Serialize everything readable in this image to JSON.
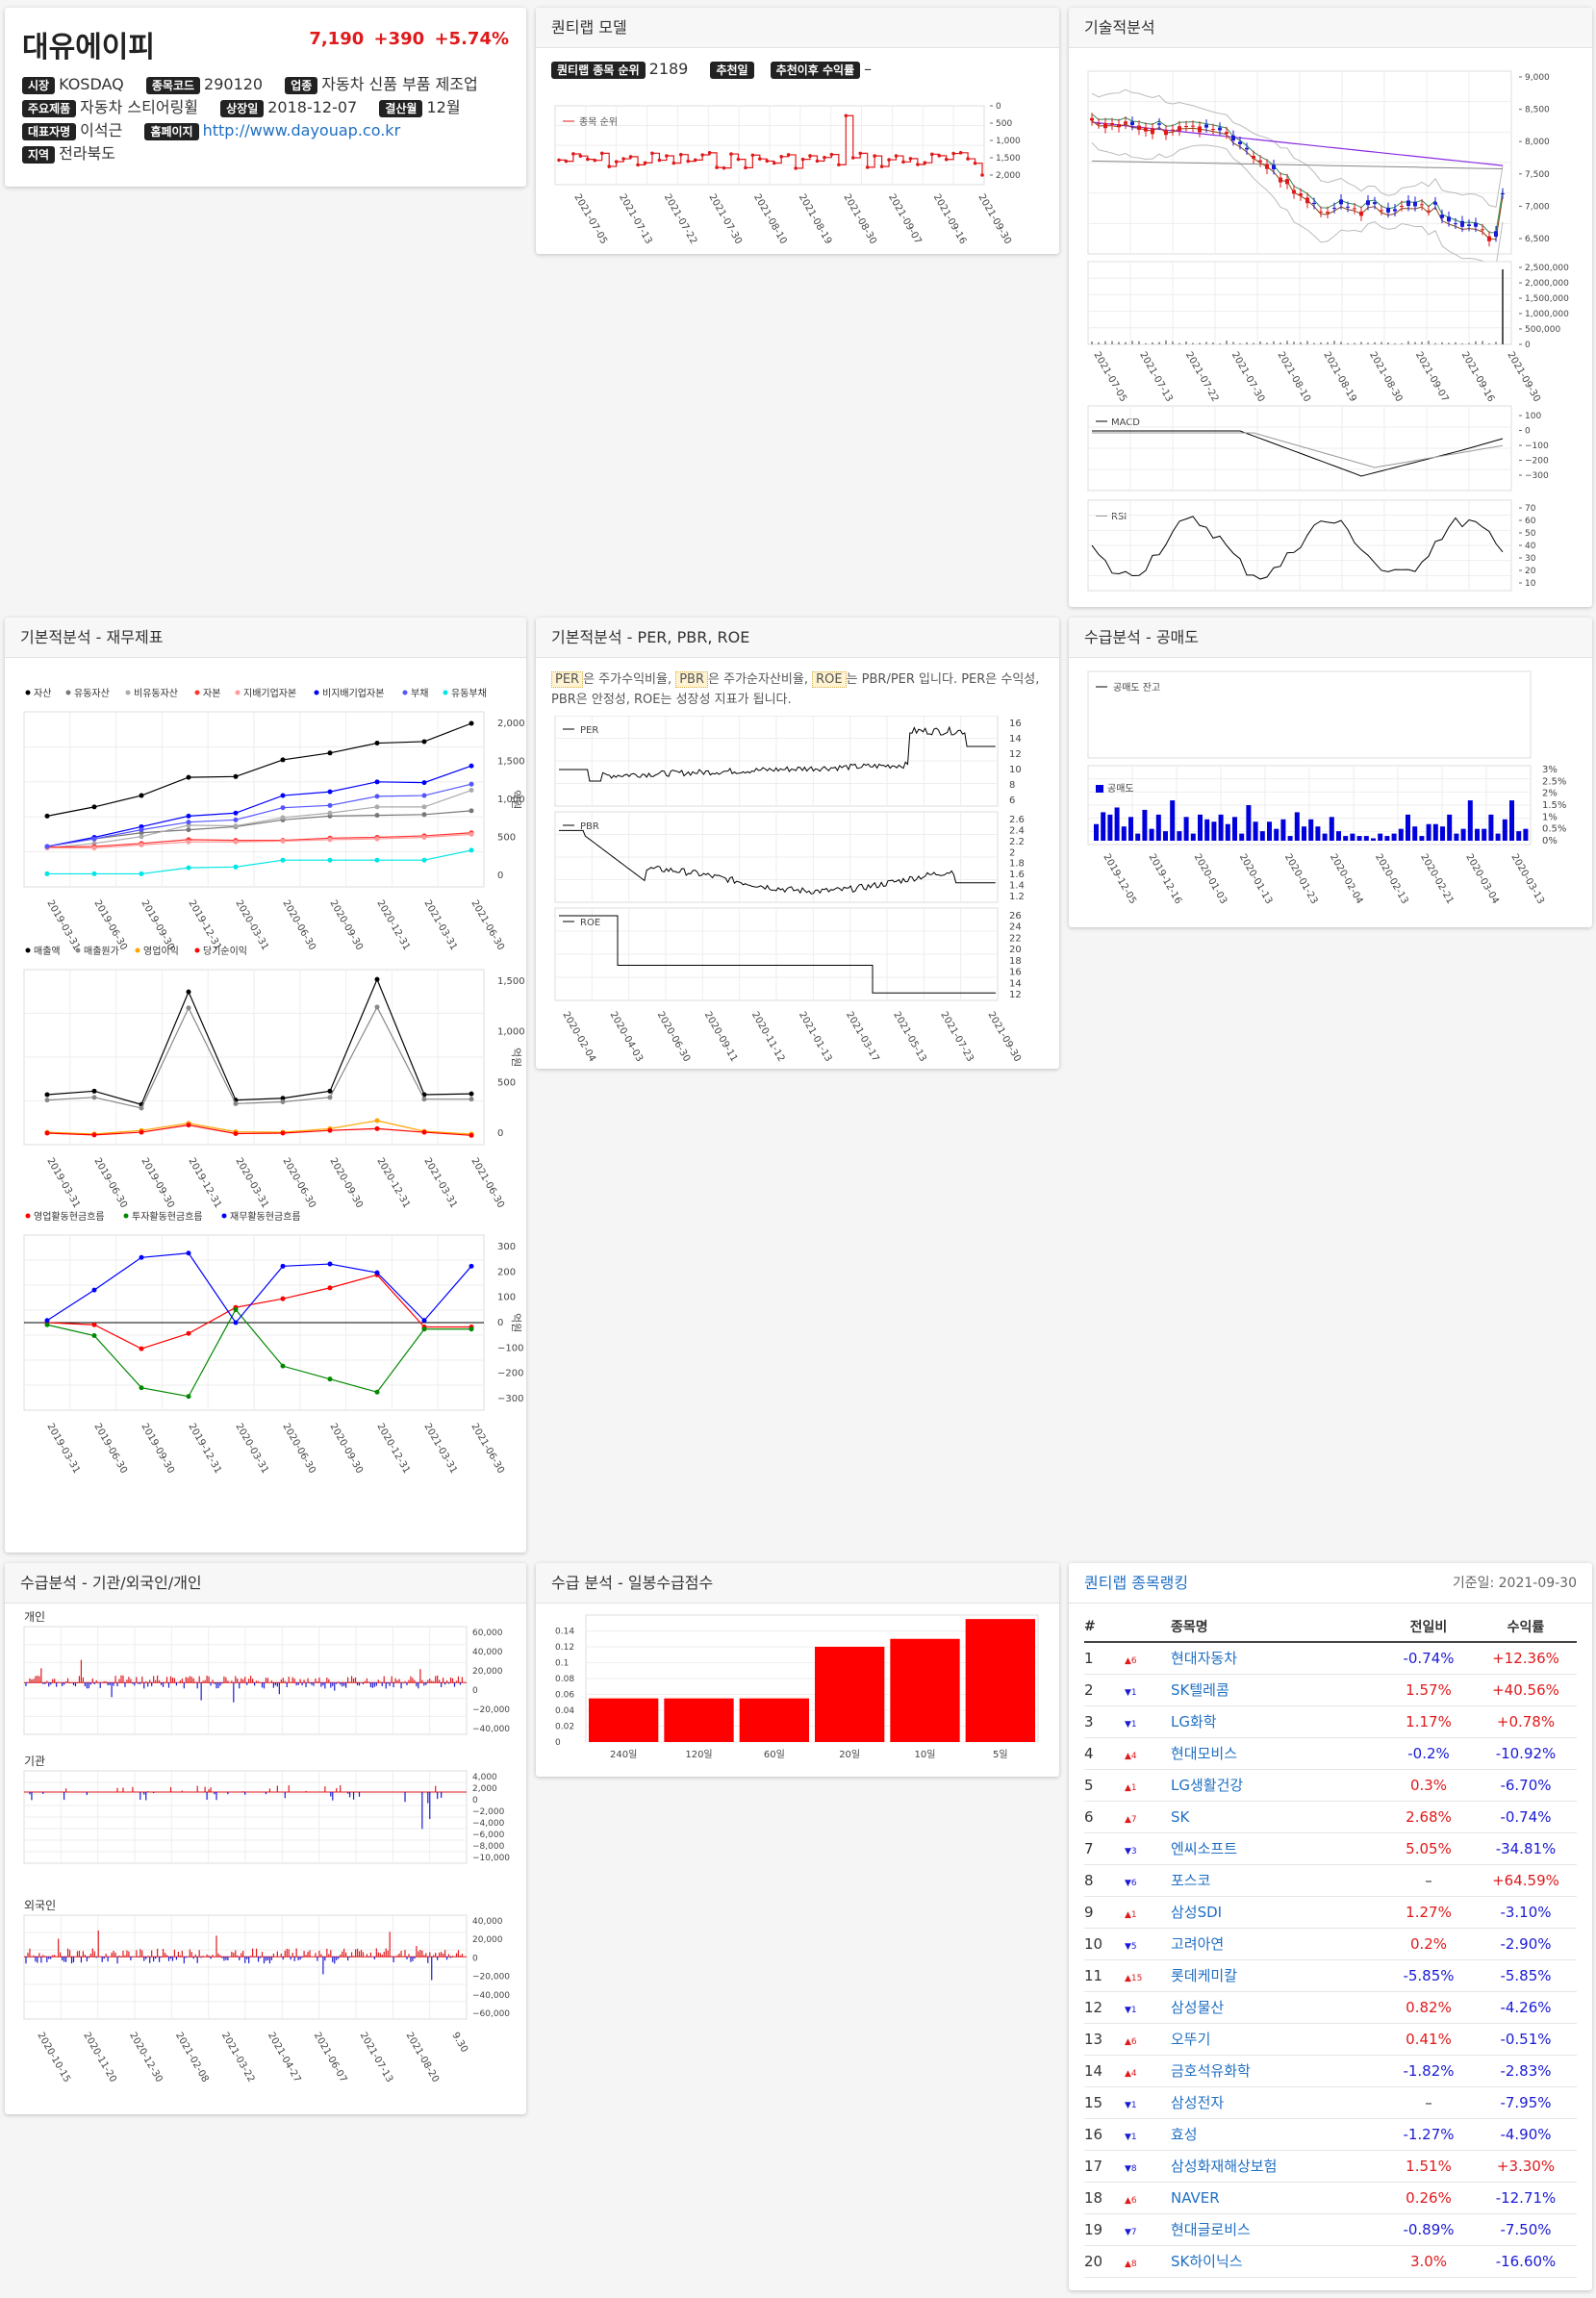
{
  "stock": {
    "name": "대유에이피",
    "price": "7,190",
    "change": "+390",
    "pct": "+5.74%",
    "up_color": "#e0191b",
    "labels": {
      "market": "시장",
      "code": "종목코드",
      "industry": "업종",
      "product": "주요제품",
      "listed": "상장일",
      "fiscal": "결산월",
      "ceo": "대표자명",
      "homepage": "홈페이지",
      "region": "지역"
    },
    "market": "KOSDAQ",
    "code": "290120",
    "industry": "자동차 신품 부품 제조업",
    "product": "자동차 스티어링휠",
    "listed": "2018-12-07",
    "fiscal": "12월",
    "ceo": "이석근",
    "homepage": "http://www.dayouap.co.kr",
    "region": "전라북도"
  },
  "quant": {
    "title": "퀀티랩 모델",
    "rank_label": "퀀티랩 종목 순위",
    "rank": "2189",
    "rec_label": "추천일",
    "ret_label": "추천이후 수익률",
    "ret": "–",
    "legend": "종목 순위",
    "yticks": [
      "0",
      "500",
      "1,000",
      "1,500",
      "2,000"
    ],
    "xticks": [
      "2021-07-05",
      "2021-07-13",
      "2021-07-22",
      "2021-07-30",
      "2021-08-10",
      "2021-08-19",
      "2021-08-30",
      "2021-09-07",
      "2021-09-16",
      "2021-09-30"
    ]
  },
  "tech": {
    "title": "기술적분석",
    "price_ticks": [
      "9,000",
      "8,500",
      "8,000",
      "7,500",
      "7,000",
      "6,500"
    ],
    "vol_ticks": [
      "2,500,000",
      "2,000,000",
      "1,500,000",
      "1,000,000",
      "500,000",
      "0"
    ],
    "xticks": [
      "2021-07-05",
      "2021-07-13",
      "2021-07-22",
      "2021-07-30",
      "2021-08-10",
      "2021-08-19",
      "2021-08-30",
      "2021-09-07",
      "2021-09-16",
      "2021-09-30"
    ],
    "macd_label": "MACD",
    "macd_ticks": [
      "100",
      "0",
      "−100",
      "−200",
      "−300"
    ],
    "rsi_label": "RSI",
    "rsi_ticks": [
      "70",
      "60",
      "50",
      "40",
      "30",
      "20",
      "10"
    ]
  },
  "fin": {
    "title": "기본적분석 - 재무제표",
    "unit": "억원",
    "xticks": [
      "2019-03-31",
      "2019-06-30",
      "2019-09-30",
      "2019-12-31",
      "2020-03-31",
      "2020-06-30",
      "2020-09-30",
      "2020-12-31",
      "2021-03-31",
      "2021-06-30"
    ],
    "legend1": [
      "자산",
      "유동자산",
      "비유동자산",
      "자본",
      "지배기업자본",
      "비지배기업자본",
      "부채",
      "유동부채"
    ],
    "colors1": [
      "#000000",
      "#777777",
      "#aaaaaa",
      "#ff3333",
      "#ff9999",
      "#0000ff",
      "#5555ff",
      "#00e5e5"
    ],
    "yticks1": [
      "2,000",
      "1,500",
      "1,000",
      "500",
      "0"
    ],
    "legend2": [
      "매출액",
      "매출원가",
      "영업이익",
      "당기순이익"
    ],
    "colors2": [
      "#000000",
      "#888888",
      "#ffa500",
      "#ff0000"
    ],
    "yticks2": [
      "1,500",
      "1,000",
      "500",
      "0"
    ],
    "legend3": [
      "영업활동현금흐름",
      "투자활동현금흐름",
      "재무활동현금흐름"
    ],
    "colors3": [
      "#ff0000",
      "#008800",
      "#0000ff"
    ],
    "yticks3": [
      "300",
      "200",
      "100",
      "0",
      "−100",
      "−200",
      "−300"
    ]
  },
  "val": {
    "title": "기본적분석 - PER, PBR, ROE",
    "desc": [
      {
        "t": "PER",
        "hl": true
      },
      {
        "t": "은 주가수익비율, ",
        "hl": false
      },
      {
        "t": "PBR",
        "hl": true
      },
      {
        "t": "은 주가순자산비율, ",
        "hl": false
      },
      {
        "t": "ROE",
        "hl": true
      },
      {
        "t": "는 PBR/PER 입니다. PER은 수익성, PBR은 안정성, ROE는 성장성 지표가 됩니다.",
        "hl": false
      }
    ],
    "per": "PER",
    "pbr": "PBR",
    "roe": "ROE",
    "per_ticks": [
      "16",
      "14",
      "12",
      "10",
      "8",
      "6"
    ],
    "pbr_ticks": [
      "2.6",
      "2.4",
      "2.2",
      "2",
      "1.8",
      "1.6",
      "1.4",
      "1.2"
    ],
    "roe_ticks": [
      "26",
      "24",
      "22",
      "20",
      "18",
      "16",
      "14",
      "12"
    ],
    "xticks": [
      "2020-02-04",
      "2020-04-03",
      "2020-06-30",
      "2020-09-11",
      "2020-11-12",
      "2021-01-13",
      "2021-03-17",
      "2021-05-13",
      "2021-07-23",
      "2021-09-30"
    ]
  },
  "short": {
    "title": "수급분석 - 공매도",
    "bal_label": "공매도 잔고",
    "vol_label": "공매도",
    "yticks": [
      "3%",
      "2.5%",
      "2%",
      "1.5%",
      "1%",
      "0.5%",
      "0%"
    ],
    "xticks": [
      "2019-12-05",
      "2019-12-16",
      "2020-01-03",
      "2020-01-13",
      "2020-01-23",
      "2020-02-04",
      "2020-02-13",
      "2020-02-21",
      "2020-03-04",
      "2020-03-13"
    ]
  },
  "flow": {
    "title": "수급분석 - 기관/외국인/개인",
    "ind": "개인",
    "inst": "기관",
    "frn": "외국인",
    "ind_ticks": [
      "60,000",
      "40,000",
      "20,000",
      "0",
      "−20,000",
      "−40,000"
    ],
    "inst_ticks": [
      "4,000",
      "2,000",
      "0",
      "−2,000",
      "−4,000",
      "−6,000",
      "−8,000",
      "−10,000"
    ],
    "frn_ticks": [
      "40,000",
      "20,000",
      "0",
      "−20,000",
      "−40,000",
      "−60,000"
    ],
    "xticks": [
      "2020-10-15",
      "2020-11-20",
      "2020-12-30",
      "2021-02-08",
      "2021-03-22",
      "2021-04-27",
      "2021-06-07",
      "2021-07-13",
      "2021-08-20",
      "9.30"
    ]
  },
  "score": {
    "title": "수급 분석 - 일봉수급점수",
    "chart_data": {
      "type": "bar",
      "categories": [
        "240일",
        "120일",
        "60일",
        "20일",
        "10일",
        "5일"
      ],
      "values": [
        0.055,
        0.055,
        0.055,
        0.12,
        0.13,
        0.155
      ],
      "ylim": [
        0,
        0.16
      ],
      "yticks": [
        "0.14",
        "0.12",
        "0.1",
        "0.08",
        "0.06",
        "0.04",
        "0.02",
        "0"
      ],
      "color": "#ff0000"
    }
  },
  "rank": {
    "title": "퀀티랩 종목랭킹",
    "date": "기준일: 2021-09-30",
    "headers": [
      "#",
      "종목명",
      "전일비",
      "수익률"
    ],
    "rows": [
      {
        "n": "1",
        "dir": "up",
        "mv": "6",
        "name": "현대자동차",
        "chg": "-0.74%",
        "cd": "dn",
        "ret": "+12.36%",
        "rd": "up"
      },
      {
        "n": "2",
        "dir": "dn",
        "mv": "1",
        "name": "SK텔레콤",
        "chg": "1.57%",
        "cd": "up",
        "ret": "+40.56%",
        "rd": "up"
      },
      {
        "n": "3",
        "dir": "dn",
        "mv": "1",
        "name": "LG화학",
        "chg": "1.17%",
        "cd": "up",
        "ret": "+0.78%",
        "rd": "up"
      },
      {
        "n": "4",
        "dir": "up",
        "mv": "4",
        "name": "현대모비스",
        "chg": "-0.2%",
        "cd": "dn",
        "ret": "-10.92%",
        "rd": "dn"
      },
      {
        "n": "5",
        "dir": "up",
        "mv": "1",
        "name": "LG생활건강",
        "chg": "0.3%",
        "cd": "up",
        "ret": "-6.70%",
        "rd": "dn"
      },
      {
        "n": "6",
        "dir": "up",
        "mv": "7",
        "name": "SK",
        "chg": "2.68%",
        "cd": "up",
        "ret": "-0.74%",
        "rd": "dn"
      },
      {
        "n": "7",
        "dir": "dn",
        "mv": "3",
        "name": "엔씨소프트",
        "chg": "5.05%",
        "cd": "up",
        "ret": "-34.81%",
        "rd": "dn"
      },
      {
        "n": "8",
        "dir": "dn",
        "mv": "6",
        "name": "포스코",
        "chg": "–",
        "cd": "nt",
        "ret": "+64.59%",
        "rd": "up"
      },
      {
        "n": "9",
        "dir": "up",
        "mv": "1",
        "name": "삼성SDI",
        "chg": "1.27%",
        "cd": "up",
        "ret": "-3.10%",
        "rd": "dn"
      },
      {
        "n": "10",
        "dir": "dn",
        "mv": "5",
        "name": "고려아연",
        "chg": "0.2%",
        "cd": "up",
        "ret": "-2.90%",
        "rd": "dn"
      },
      {
        "n": "11",
        "dir": "up",
        "mv": "15",
        "name": "롯데케미칼",
        "chg": "-5.85%",
        "cd": "dn",
        "ret": "-5.85%",
        "rd": "dn"
      },
      {
        "n": "12",
        "dir": "dn",
        "mv": "1",
        "name": "삼성물산",
        "chg": "0.82%",
        "cd": "up",
        "ret": "-4.26%",
        "rd": "dn"
      },
      {
        "n": "13",
        "dir": "up",
        "mv": "6",
        "name": "오뚜기",
        "chg": "0.41%",
        "cd": "up",
        "ret": "-0.51%",
        "rd": "dn"
      },
      {
        "n": "14",
        "dir": "up",
        "mv": "4",
        "name": "금호석유화학",
        "chg": "-1.82%",
        "cd": "dn",
        "ret": "-2.83%",
        "rd": "dn"
      },
      {
        "n": "15",
        "dir": "dn",
        "mv": "1",
        "name": "삼성전자",
        "chg": "–",
        "cd": "nt",
        "ret": "-7.95%",
        "rd": "dn"
      },
      {
        "n": "16",
        "dir": "dn",
        "mv": "1",
        "name": "효성",
        "chg": "-1.27%",
        "cd": "dn",
        "ret": "-4.90%",
        "rd": "dn"
      },
      {
        "n": "17",
        "dir": "dn",
        "mv": "8",
        "name": "삼성화재해상보험",
        "chg": "1.51%",
        "cd": "up",
        "ret": "+3.30%",
        "rd": "up"
      },
      {
        "n": "18",
        "dir": "up",
        "mv": "6",
        "name": "NAVER",
        "chg": "0.26%",
        "cd": "up",
        "ret": "-12.71%",
        "rd": "dn"
      },
      {
        "n": "19",
        "dir": "dn",
        "mv": "7",
        "name": "현대글로비스",
        "chg": "-0.89%",
        "cd": "dn",
        "ret": "-7.50%",
        "rd": "dn"
      },
      {
        "n": "20",
        "dir": "up",
        "mv": "8",
        "name": "SK하이닉스",
        "chg": "3.0%",
        "cd": "up",
        "ret": "-16.60%",
        "rd": "dn"
      }
    ]
  }
}
